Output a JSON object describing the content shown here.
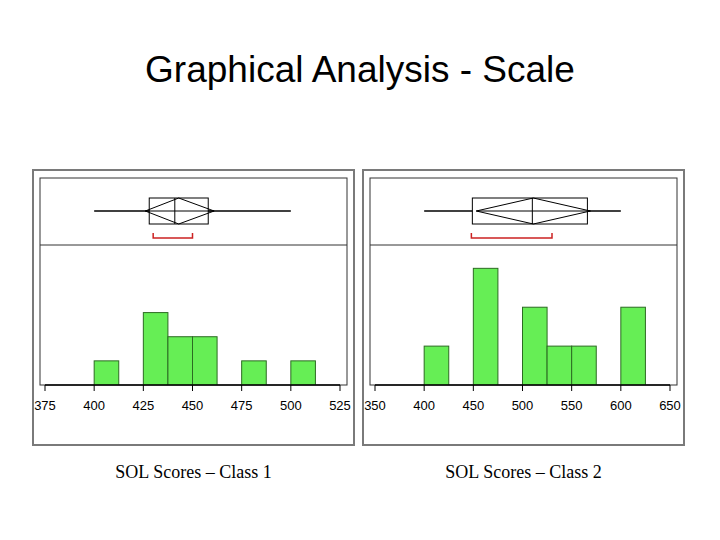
{
  "title": "Graphical Analysis - Scale",
  "chart_data": [
    {
      "type": "histogram",
      "xlabel": "SOL Scores – Class 1",
      "bins": [
        400,
        412.5,
        425,
        437.5,
        450,
        462.5,
        475,
        487.5,
        500,
        512.5
      ],
      "counts": [
        1,
        0,
        3,
        2,
        2,
        0,
        1,
        0,
        1
      ],
      "color": "#66ee55",
      "xlim": [
        375,
        525
      ],
      "xticks": [
        375,
        400,
        425,
        450,
        475,
        500,
        525
      ],
      "ylim": [
        0,
        5.8
      ],
      "tick_labels": "x",
      "box": {
        "min": 400,
        "q1": 428,
        "median": 441,
        "q3": 458,
        "max": 500,
        "mean": 443,
        "mean_ci": [
          426,
          461
        ],
        "shortest_half": [
          430,
          450
        ]
      }
    },
    {
      "type": "histogram",
      "xlabel": "SOL Scores – Class 2",
      "bins": [
        400,
        425,
        450,
        475,
        500,
        525,
        550,
        575,
        600,
        625
      ],
      "counts": [
        1,
        0,
        3,
        0,
        2,
        1,
        1,
        0,
        2
      ],
      "color": "#66ee55",
      "xlim": [
        350,
        650
      ],
      "xticks": [
        350,
        400,
        450,
        500,
        550,
        600,
        650
      ],
      "ylim": [
        0,
        3.6
      ],
      "tick_labels": "x",
      "box": {
        "min": 400,
        "q1": 449,
        "median": 510,
        "q3": 566,
        "max": 600,
        "mean": 511,
        "mean_ci": [
          453,
          569
        ],
        "shortest_half": [
          448,
          530
        ]
      }
    }
  ]
}
